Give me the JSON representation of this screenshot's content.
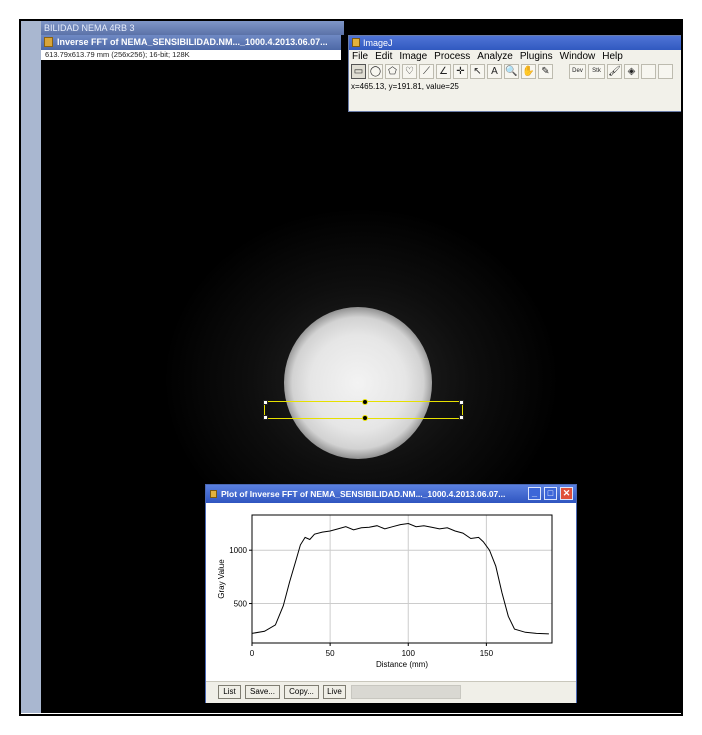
{
  "background_window": {
    "title": "BILIDAD NEMA 4RB 3"
  },
  "image_window": {
    "title": "Inverse FFT of NEMA_SENSIBILIDAD.NM..._1000.4.2013.06.07...",
    "info": "613.79x613.79 mm (256x256); 16-bit; 128K"
  },
  "imagej": {
    "title": "ImageJ",
    "menu": [
      "File",
      "Edit",
      "Image",
      "Process",
      "Analyze",
      "Plugins",
      "Window",
      "Help"
    ],
    "tools": [
      {
        "name": "rectangle-tool-icon",
        "glyph": "▭",
        "selected": true
      },
      {
        "name": "oval-tool-icon",
        "glyph": "◯"
      },
      {
        "name": "polygon-tool-icon",
        "glyph": "⬠"
      },
      {
        "name": "freehand-tool-icon",
        "glyph": "♡"
      },
      {
        "name": "line-tool-icon",
        "glyph": "⟋"
      },
      {
        "name": "angle-tool-icon",
        "glyph": "∠"
      },
      {
        "name": "point-tool-icon",
        "glyph": "✛"
      },
      {
        "name": "wand-tool-icon",
        "glyph": "↖"
      },
      {
        "name": "text-tool-icon",
        "glyph": "A"
      },
      {
        "name": "magnifier-tool-icon",
        "glyph": "🔍"
      },
      {
        "name": "hand-tool-icon",
        "glyph": "✋"
      },
      {
        "name": "dropper-tool-icon",
        "glyph": "✎"
      },
      {
        "name": "dev-menu-icon",
        "glyph": "Dev"
      },
      {
        "name": "stk-menu-icon",
        "glyph": "Stk"
      },
      {
        "name": "brush-tool-icon",
        "glyph": "🖌"
      },
      {
        "name": "flood-fill-icon",
        "glyph": "◈"
      }
    ],
    "status": "x=465.13, y=191.81, value=25"
  },
  "plot_window": {
    "title": "Plot of Inverse FFT of NEMA_SENSIBILIDAD.NM..._1000.4.2013.06.07...",
    "buttons": {
      "list": "List",
      "save": "Save...",
      "copy": "Copy...",
      "live": "Live"
    }
  },
  "chart_data": {
    "type": "line",
    "title": "",
    "xlabel": "Distance (mm)",
    "ylabel": "Gray Value",
    "xlim": [
      0,
      192
    ],
    "ylim": [
      130,
      1330
    ],
    "xticks": [
      0,
      50,
      100,
      150
    ],
    "yticks": [
      500,
      1000
    ],
    "grid": true,
    "series": [
      {
        "x": [
          0,
          8,
          15,
          20,
          24,
          28,
          31,
          34,
          37,
          40,
          45,
          50,
          55,
          60,
          65,
          70,
          75,
          80,
          85,
          90,
          95,
          100,
          105,
          110,
          115,
          120,
          125,
          130,
          135,
          140,
          145,
          148,
          152,
          156,
          160,
          164,
          168,
          175,
          182,
          190
        ],
        "y": [
          220,
          240,
          300,
          480,
          700,
          900,
          1050,
          1120,
          1100,
          1150,
          1170,
          1180,
          1200,
          1220,
          1190,
          1210,
          1215,
          1230,
          1200,
          1220,
          1240,
          1250,
          1220,
          1230,
          1215,
          1200,
          1210,
          1180,
          1160,
          1110,
          1120,
          1080,
          1000,
          850,
          600,
          380,
          260,
          230,
          220,
          215
        ]
      }
    ]
  }
}
